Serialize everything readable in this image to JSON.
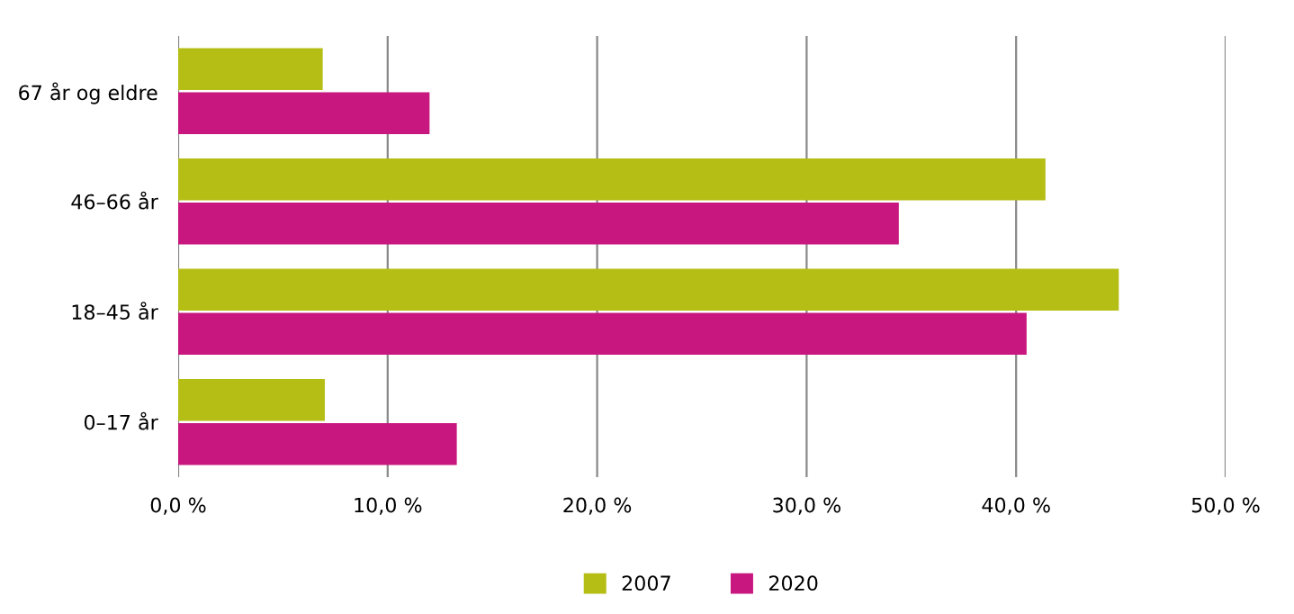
{
  "chart_data": {
    "type": "bar",
    "orientation": "horizontal",
    "categories": [
      "67 år og eldre",
      "46–66 år",
      "18–45 år",
      "0–17 år"
    ],
    "series": [
      {
        "name": "2007",
        "color": "#b5be14",
        "values": [
          6.9,
          41.4,
          44.9,
          7.0
        ]
      },
      {
        "name": "2020",
        "color": "#c8177f",
        "values": [
          12.0,
          34.4,
          40.5,
          13.3
        ]
      }
    ],
    "xlim": [
      0,
      50
    ],
    "xticks": [
      {
        "value": 0,
        "label": "0,0 %"
      },
      {
        "value": 10,
        "label": "10,0 %"
      },
      {
        "value": 20,
        "label": "20,0 %"
      },
      {
        "value": 30,
        "label": "30,0 %"
      },
      {
        "value": 40,
        "label": "40,0 %"
      },
      {
        "value": 50,
        "label": "50,0 %"
      }
    ],
    "grid": "x",
    "legend": "bottom"
  }
}
